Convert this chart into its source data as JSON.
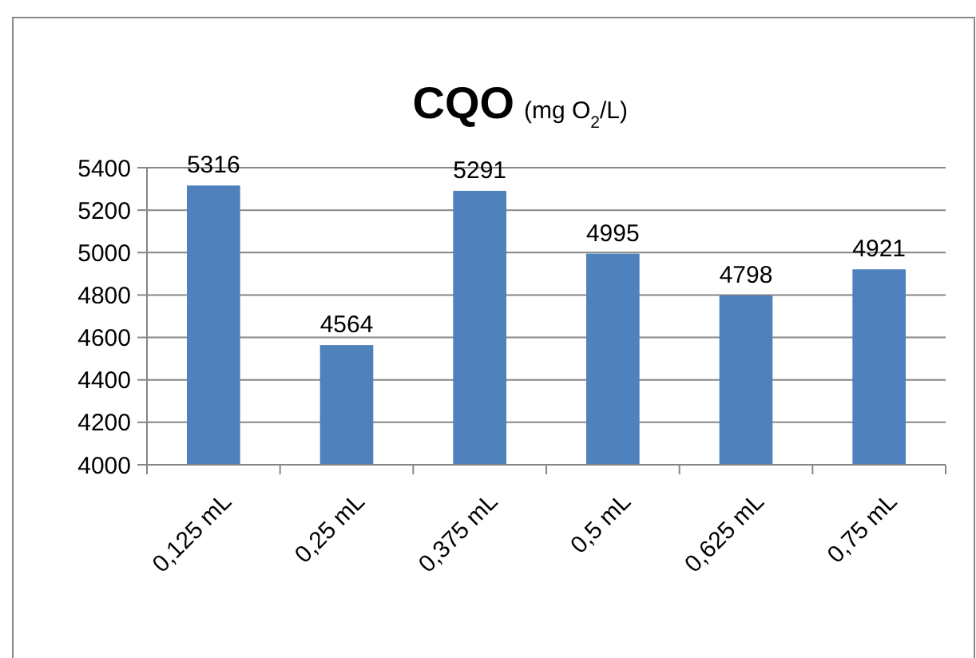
{
  "chart_data": {
    "type": "bar",
    "title": "CQO",
    "subtitle": "(mg O$_{2}$/L)",
    "categories": [
      "0,125 mL",
      "0,25 mL",
      "0,375 mL",
      "0,5 mL",
      "0,625 mL",
      "0,75 mL"
    ],
    "values": [
      5316,
      4564,
      5291,
      4995,
      4798,
      4921
    ],
    "color": "#4f81bd",
    "ylim": [
      4000,
      5400
    ],
    "yticks": [
      4000,
      4200,
      4400,
      4600,
      4800,
      5000,
      5200,
      5400
    ],
    "grid": "y",
    "data_labels": true
  }
}
